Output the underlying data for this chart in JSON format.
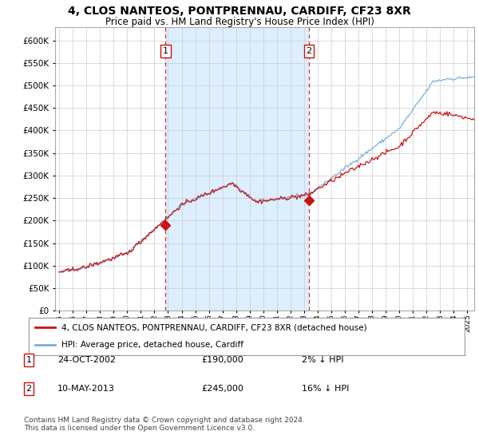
{
  "title": "4, CLOS NANTEOS, PONTPRENNAU, CARDIFF, CF23 8XR",
  "subtitle": "Price paid vs. HM Land Registry's House Price Index (HPI)",
  "ylim": [
    0,
    630000
  ],
  "ytick_values": [
    0,
    50000,
    100000,
    150000,
    200000,
    250000,
    300000,
    350000,
    400000,
    450000,
    500000,
    550000,
    600000
  ],
  "xlim_start": 1994.7,
  "xlim_end": 2025.5,
  "hpi_color": "#7aafd4",
  "price_color": "#cc1111",
  "shade_color": "#ddeeff",
  "vline_color": "#cc1111",
  "purchase1_x": 2002.82,
  "purchase1_y": 190000,
  "purchase2_x": 2013.36,
  "purchase2_y": 245000,
  "legend_line1": "4, CLOS NANTEOS, PONTPRENNAU, CARDIFF, CF23 8XR (detached house)",
  "legend_line2": "HPI: Average price, detached house, Cardiff",
  "footnote1": "Contains HM Land Registry data © Crown copyright and database right 2024.",
  "footnote2": "This data is licensed under the Open Government Licence v3.0.",
  "row1_label": "1",
  "row1_date": "24-OCT-2002",
  "row1_price": "£190,000",
  "row1_hpi": "2% ↓ HPI",
  "row2_label": "2",
  "row2_date": "10-MAY-2013",
  "row2_price": "£245,000",
  "row2_hpi": "16% ↓ HPI"
}
